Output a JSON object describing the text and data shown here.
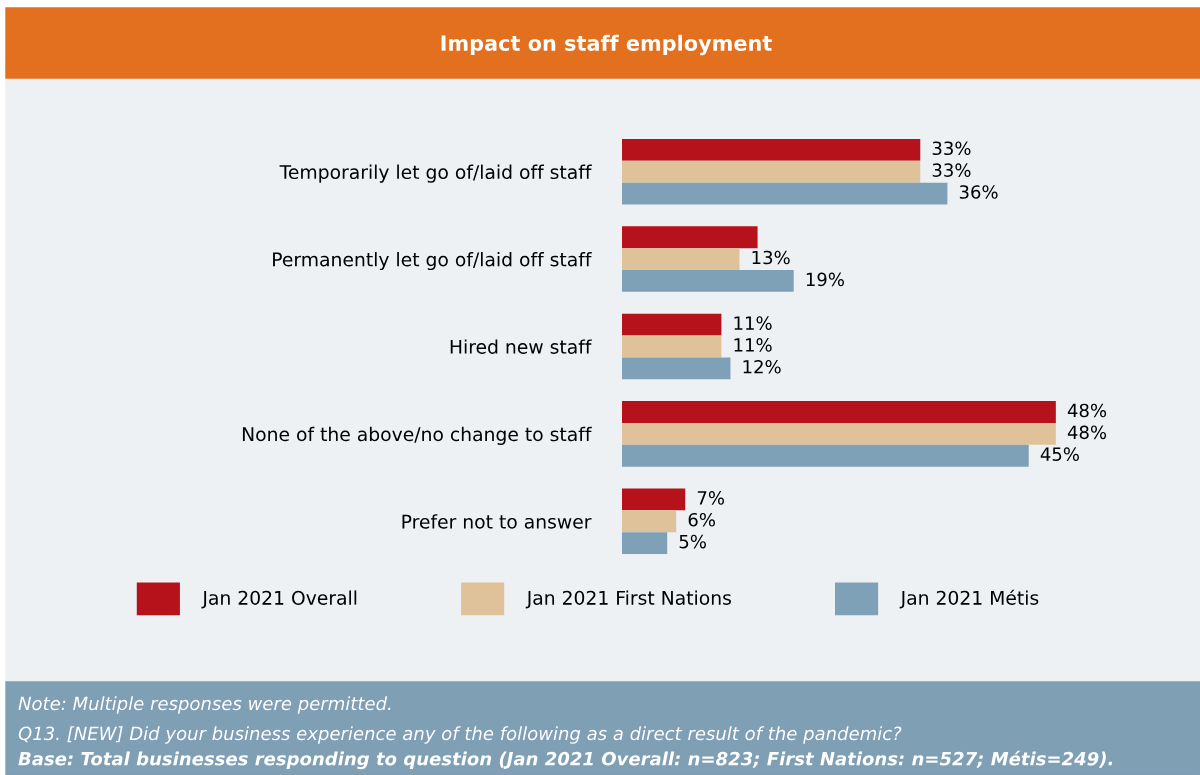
{
  "chart_data": {
    "type": "bar",
    "orientation": "horizontal",
    "title": "Impact on staff employment",
    "categories": [
      "Temporarily let go of/laid off staff",
      "Permanently let go of/laid off staff",
      "Hired new staff",
      "None of the above/no change to staff",
      "Prefer not to answer"
    ],
    "series": [
      {
        "name": "Jan 2021 Overall",
        "color": "#b5121b",
        "values": [
          33,
          15,
          11,
          48,
          7
        ],
        "value_labels": [
          "33%",
          null,
          "11%",
          "48%",
          "7%"
        ]
      },
      {
        "name": "Jan 2021 First Nations",
        "color": "#e0c29a",
        "values": [
          33,
          13,
          11,
          48,
          6
        ],
        "value_labels": [
          "33%",
          "13%",
          "11%",
          "48%",
          "6%"
        ]
      },
      {
        "name": "Jan 2021 Métis",
        "color": "#7fa1b8",
        "values": [
          36,
          19,
          12,
          45,
          5
        ],
        "value_labels": [
          "36%",
          "19%",
          "12%",
          "45%",
          "5%"
        ]
      }
    ],
    "legend": "bottom",
    "grid": false,
    "annotations": [
      "Note: Multiple responses were permitted.",
      "Q13. [NEW] Did your business experience any of the following as a direct result of the pandemic?",
      "Base: Total businesses responding to question (Jan 2021 Overall: n=823; First Nations: n=527; Métis=249)."
    ]
  }
}
